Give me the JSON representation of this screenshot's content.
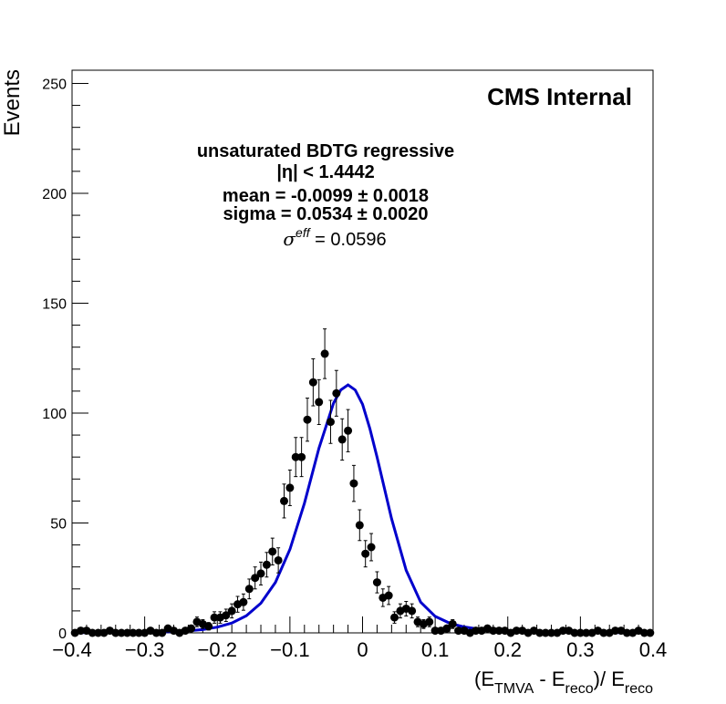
{
  "chart_data": {
    "type": "scatter",
    "title": "",
    "watermark": "CMS Internal",
    "xlabel_parts": {
      "open": "(E",
      "sub1": "TMVA",
      "mid": " - E",
      "sub2": "reco",
      "close": ")/ E",
      "sub3": "reco"
    },
    "ylabel": "Events",
    "xlim": [
      -0.4,
      0.4
    ],
    "ylim": [
      0,
      256
    ],
    "x_ticks": [
      {
        "value": -0.4,
        "label": "−0.4"
      },
      {
        "value": -0.3,
        "label": "−0.3"
      },
      {
        "value": -0.2,
        "label": "−0.2"
      },
      {
        "value": -0.1,
        "label": "−0.1"
      },
      {
        "value": 0.0,
        "label": "0"
      },
      {
        "value": 0.1,
        "label": "0.1"
      },
      {
        "value": 0.2,
        "label": "0.2"
      },
      {
        "value": 0.3,
        "label": "0.3"
      },
      {
        "value": 0.4,
        "label": "0.4"
      }
    ],
    "y_ticks": [
      {
        "value": 0,
        "label": "0"
      },
      {
        "value": 50,
        "label": "50"
      },
      {
        "value": 100,
        "label": "100"
      },
      {
        "value": 150,
        "label": "150"
      },
      {
        "value": 200,
        "label": "200"
      },
      {
        "value": 250,
        "label": "250"
      }
    ],
    "grid": false,
    "legend": "none",
    "annotations": {
      "line1": "unsaturated BDTG regressive",
      "line2": "|η| < 1.4442",
      "line3": "mean = -0.0099 ± 0.0018",
      "line4": "sigma = 0.0534 ± 0.0020",
      "line5_symbol": "σ",
      "line5_superscript": "eff",
      "line5_value": " = 0.0596"
    },
    "series": [
      {
        "kind": "points_with_errors",
        "color": "#000000",
        "x": [
          -0.396,
          -0.388,
          -0.38,
          -0.372,
          -0.364,
          -0.356,
          -0.348,
          -0.34,
          -0.332,
          -0.324,
          -0.316,
          -0.308,
          -0.3,
          -0.292,
          -0.284,
          -0.276,
          -0.268,
          -0.26,
          -0.252,
          -0.244,
          -0.236,
          -0.228,
          -0.22,
          -0.212,
          -0.204,
          -0.196,
          -0.188,
          -0.18,
          -0.172,
          -0.164,
          -0.156,
          -0.148,
          -0.14,
          -0.132,
          -0.124,
          -0.116,
          -0.108,
          -0.1,
          -0.092,
          -0.084,
          -0.076,
          -0.068,
          -0.06,
          -0.052,
          -0.044,
          -0.036,
          -0.028,
          -0.02,
          -0.012,
          -0.004,
          0.004,
          0.012,
          0.02,
          0.028,
          0.036,
          0.044,
          0.052,
          0.06,
          0.068,
          0.076,
          0.084,
          0.092,
          0.1,
          0.108,
          0.116,
          0.124,
          0.132,
          0.14,
          0.148,
          0.156,
          0.164,
          0.172,
          0.18,
          0.188,
          0.196,
          0.204,
          0.212,
          0.22,
          0.228,
          0.236,
          0.244,
          0.252,
          0.26,
          0.268,
          0.276,
          0.284,
          0.292,
          0.3,
          0.308,
          0.316,
          0.324,
          0.332,
          0.34,
          0.348,
          0.356,
          0.364,
          0.372,
          0.38,
          0.388,
          0.396
        ],
        "y": [
          0,
          1,
          1,
          0,
          0,
          0,
          1,
          0,
          0,
          0,
          0,
          0,
          0,
          1,
          0,
          0,
          2,
          1,
          0,
          1,
          2,
          5,
          4,
          3,
          7,
          7,
          8,
          10,
          13,
          14,
          20,
          25,
          27,
          31,
          37,
          33,
          60,
          66,
          80,
          80,
          97,
          114,
          105,
          127,
          96,
          109,
          88,
          92,
          68,
          49,
          36,
          39,
          23,
          16,
          17,
          7,
          10,
          11,
          10,
          5,
          4,
          5,
          1,
          1,
          2,
          4,
          1,
          1,
          0,
          1,
          1,
          2,
          1,
          1,
          1,
          0,
          1,
          1,
          0,
          1,
          0,
          0,
          0,
          0,
          1,
          1,
          0,
          0,
          0,
          0,
          1,
          0,
          0,
          1,
          1,
          0,
          0,
          1,
          0,
          0
        ],
        "errors": [
          0,
          1,
          1,
          0,
          0,
          0,
          1,
          0,
          0,
          0,
          0,
          0,
          0,
          1,
          0,
          0,
          1.4,
          1,
          0,
          1,
          1.4,
          2.2,
          2,
          1.7,
          2.6,
          2.6,
          2.8,
          3.2,
          3.6,
          3.7,
          4.5,
          5,
          5.2,
          5.6,
          6.1,
          5.7,
          7.7,
          8.1,
          8.9,
          8.9,
          9.8,
          10.7,
          10.2,
          11.3,
          9.8,
          10.4,
          9.4,
          9.6,
          8.2,
          7,
          6,
          6.2,
          4.8,
          4,
          4.1,
          2.6,
          3.2,
          3.3,
          3.2,
          2.2,
          2,
          2.2,
          1,
          1,
          1.4,
          2,
          1,
          1,
          0,
          1,
          1,
          1.4,
          1,
          1,
          1,
          0,
          1,
          1,
          0,
          1,
          0,
          0,
          0,
          0,
          1,
          1,
          0,
          0,
          0,
          0,
          1,
          0,
          0,
          1,
          1,
          0,
          0,
          1,
          0,
          0
        ]
      },
      {
        "kind": "fit_curve",
        "color": "#0000cc",
        "x": [
          -0.4,
          -0.38,
          -0.36,
          -0.34,
          -0.32,
          -0.3,
          -0.28,
          -0.26,
          -0.24,
          -0.22,
          -0.2,
          -0.18,
          -0.16,
          -0.14,
          -0.12,
          -0.1,
          -0.08,
          -0.06,
          -0.04,
          -0.03,
          -0.02,
          -0.01,
          0.0,
          0.01,
          0.02,
          0.04,
          0.06,
          0.08,
          0.1,
          0.12,
          0.14,
          0.16,
          0.18,
          0.2,
          0.22,
          0.24,
          0.26,
          0.28,
          0.3,
          0.32,
          0.34,
          0.36,
          0.38,
          0.4
        ],
        "y": [
          0.1,
          0.1,
          0.1,
          0.1,
          0.2,
          0.3,
          0.4,
          0.6,
          0.9,
          1.5,
          2.6,
          4.5,
          7.8,
          13.5,
          23.0,
          38.0,
          59.0,
          84.0,
          104.5,
          110.5,
          112.8,
          110.5,
          104.0,
          93.0,
          80.0,
          52.0,
          28.5,
          14.0,
          7.5,
          4.4,
          2.7,
          1.7,
          1.1,
          0.8,
          0.5,
          0.4,
          0.3,
          0.2,
          0.2,
          0.1,
          0.1,
          0.1,
          0.1,
          0.1
        ]
      }
    ]
  }
}
